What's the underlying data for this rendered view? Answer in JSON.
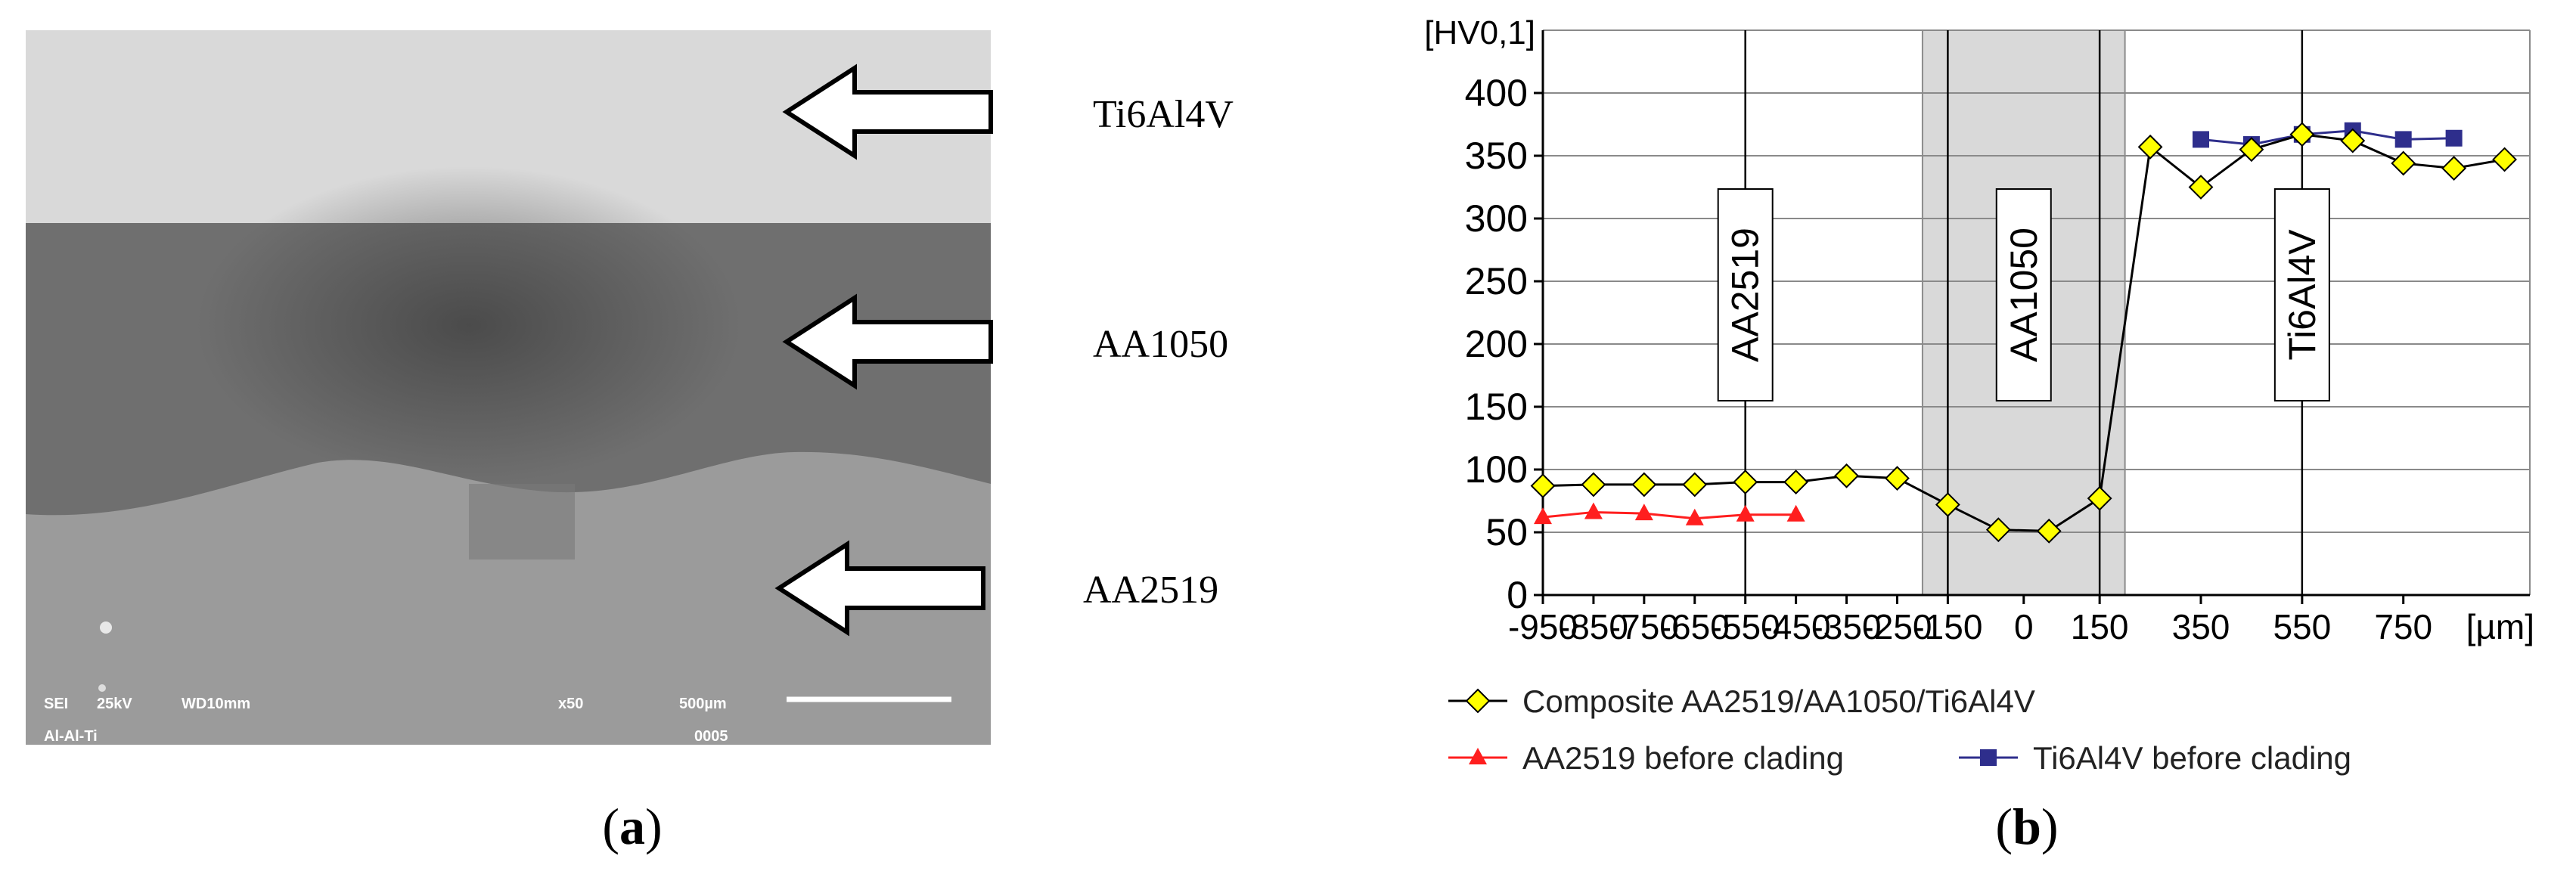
{
  "panel_a": {
    "labels": {
      "top": "Ti6Al4V",
      "middle": "AA1050",
      "bottom": "AA2519"
    },
    "sem_info": {
      "line1_left": "SEI",
      "line1_kv": "25kV",
      "line1_wd": "WD10mm",
      "line1_mag": "x50",
      "line1_scale": "500µm",
      "line2_left": "Al-Al-Ti",
      "line2_num": "0005"
    },
    "colors": {
      "top_layer": "#d8d8d8",
      "middle_layer": "#6e6e6e",
      "bottom_layer": "#999999"
    }
  },
  "captions": {
    "a": {
      "open": "(",
      "letter": "a",
      "close": ")"
    },
    "b": {
      "open": "(",
      "letter": "b",
      "close": ")"
    }
  },
  "chart_data": {
    "type": "line",
    "ylabel": "[HV0,1]",
    "xlabel": "[µm]",
    "xlim": [
      -950,
      1000
    ],
    "ylim": [
      0,
      450
    ],
    "x_ticks": [
      -950,
      -850,
      -750,
      -650,
      -550,
      -450,
      -350,
      -250,
      -150,
      0,
      150,
      350,
      550,
      750
    ],
    "x_tick_labels": [
      "-950",
      "-850",
      "-750",
      "-650",
      "-550",
      "-450",
      "-350",
      "-250",
      "-150",
      "0",
      "150",
      "350",
      "550",
      "750"
    ],
    "y_ticks": [
      0,
      50,
      100,
      150,
      200,
      250,
      300,
      350,
      400
    ],
    "vertical_gridlines": [
      -550,
      -150,
      150,
      550
    ],
    "shaded_region": [
      -200,
      200
    ],
    "zone_labels": [
      {
        "text": "AA2519",
        "x": -550
      },
      {
        "text": "AA1050",
        "x": 0
      },
      {
        "text": "Ti6Al4V",
        "x": 550
      }
    ],
    "grid": true,
    "series": [
      {
        "name": "Composite AA2519/AA1050/Ti6Al4V",
        "color": "#ffff00",
        "line_color": "#000000",
        "marker": "diamond",
        "points": [
          [
            -950,
            87
          ],
          [
            -850,
            88
          ],
          [
            -750,
            88
          ],
          [
            -650,
            88
          ],
          [
            -550,
            90
          ],
          [
            -450,
            90
          ],
          [
            -350,
            95
          ],
          [
            -250,
            93
          ],
          [
            -150,
            72
          ],
          [
            -50,
            52
          ],
          [
            50,
            51
          ],
          [
            150,
            77
          ],
          [
            250,
            357
          ],
          [
            350,
            325
          ],
          [
            450,
            355
          ],
          [
            550,
            367
          ],
          [
            650,
            362
          ],
          [
            750,
            344
          ],
          [
            850,
            340
          ],
          [
            950,
            347
          ]
        ]
      },
      {
        "name": "AA2519 before clading",
        "color": "#ff1e1e",
        "line_color": "#ff1e1e",
        "marker": "triangle",
        "points": [
          [
            -950,
            62
          ],
          [
            -850,
            66
          ],
          [
            -750,
            65
          ],
          [
            -650,
            61
          ],
          [
            -550,
            64
          ],
          [
            -450,
            64
          ]
        ]
      },
      {
        "name": "Ti6Al4V before clading",
        "color": "#2e2e8c",
        "line_color": "#2e2e8c",
        "marker": "square",
        "points": [
          [
            350,
            363
          ],
          [
            450,
            359
          ],
          [
            550,
            367
          ],
          [
            650,
            370
          ],
          [
            750,
            363
          ],
          [
            850,
            364
          ]
        ]
      }
    ]
  }
}
